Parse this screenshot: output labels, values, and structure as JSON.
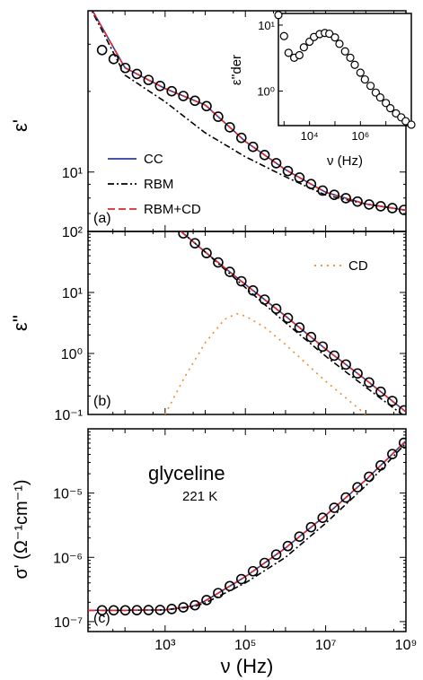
{
  "x_axis": {
    "label": "ν (Hz)",
    "ticks": [
      "10³",
      "10⁵",
      "10⁷",
      "10⁹"
    ]
  },
  "chart_data": [
    {
      "type": "line",
      "panel": "(a)",
      "ylabel": "ε'",
      "xscale": "log",
      "yscale": "log",
      "xlim": [
        12.0,
        1000000000.0
      ],
      "ylim": [
        6,
        40
      ],
      "y_ticks": [
        "10¹"
      ],
      "legend_position": "lower-left",
      "x": [
        10,
        100,
        1000,
        10000,
        100000,
        1000000,
        10000000,
        100000000,
        1000000000
      ],
      "series": [
        {
          "name": "CC",
          "color": "#2b3f9e",
          "style": "solid",
          "values": [
            45,
            24.5,
            20.5,
            17.8,
            13.0,
            10.2,
            8.4,
            7.6,
            7.2
          ]
        },
        {
          "name": "RBM",
          "color": "#000000",
          "style": "dashdot",
          "values": [
            45,
            23,
            18.3,
            14.0,
            11.4,
            9.6,
            8.2,
            7.6,
            7.2
          ]
        },
        {
          "name": "RBM+CD",
          "color": "#e3262b",
          "style": "dashed",
          "values": [
            45,
            24.5,
            20.5,
            17.8,
            13.0,
            10.2,
            8.4,
            7.6,
            7.2
          ]
        },
        {
          "name": "data",
          "color": "#000000",
          "style": "marker",
          "values": [
            32,
            24.5,
            20.5,
            17.8,
            13.0,
            10.2,
            8.4,
            7.6,
            7.2
          ]
        }
      ],
      "inset": {
        "type": "scatter",
        "ylabel": "ε''der",
        "xlabel": "ν (Hz)",
        "xscale": "log",
        "yscale": "log",
        "xlim": [
          600,
          100000000.0
        ],
        "ylim": [
          0.3,
          15
        ],
        "x_ticks": [
          "10⁴",
          "10⁶"
        ],
        "y_ticks": [
          "10¹",
          "10⁰"
        ],
        "x": [
          600,
          1000,
          1500,
          2500,
          4000,
          6000,
          10000,
          15000,
          25000,
          40000,
          60000,
          100000,
          150000,
          250000,
          400000,
          600000,
          1000000,
          1500000,
          2500000,
          4000000,
          6000000,
          10000000,
          15000000,
          25000000,
          40000000,
          60000000,
          100000000
        ],
        "values": [
          14.2,
          6.8,
          3.8,
          3.2,
          3.5,
          4.6,
          5.6,
          6.6,
          7.3,
          7.6,
          7.4,
          6.5,
          5.2,
          4.0,
          3.2,
          2.5,
          1.9,
          1.5,
          1.2,
          0.95,
          0.8,
          0.66,
          0.55,
          0.46,
          0.4,
          0.35,
          0.31
        ]
      }
    },
    {
      "type": "line",
      "panel": "(b)",
      "ylabel": "ε''",
      "xscale": "log",
      "yscale": "log",
      "xlim": [
        12.0,
        1000000000.0
      ],
      "ylim": [
        0.1,
        100
      ],
      "y_ticks": [
        "10²",
        "10¹",
        "10⁰",
        "10⁻¹"
      ],
      "legend_position": "top-right",
      "x": [
        2500,
        10000,
        100000,
        1000000,
        10000000,
        100000000,
        1000000000
      ],
      "series": [
        {
          "name": "CC",
          "color": "#2b3f9e",
          "style": "solid",
          "values": [
            100,
            46,
            13.5,
            4.1,
            1.18,
            0.37,
            0.11
          ]
        },
        {
          "name": "RBM",
          "color": "#000000",
          "style": "dashdot",
          "values": [
            100,
            46,
            12.0,
            3.2,
            0.9,
            0.28,
            0.09
          ]
        },
        {
          "name": "RBM+CD",
          "color": "#e3262b",
          "style": "dashed",
          "values": [
            100,
            46,
            13.5,
            4.1,
            1.18,
            0.37,
            0.11
          ]
        },
        {
          "name": "data",
          "color": "#000000",
          "style": "marker",
          "values": [
            100,
            46,
            13.5,
            4.1,
            1.18,
            0.37,
            0.11
          ]
        },
        {
          "name": "CD",
          "color": "#f08a2a",
          "style": "dotted",
          "x": [
            1000,
            3000,
            10000,
            30000,
            60000,
            100000,
            300000,
            1000000,
            10000000,
            100000000
          ],
          "values": [
            0.1,
            0.4,
            1.5,
            3.6,
            4.5,
            4.1,
            2.7,
            1.4,
            0.35,
            0.1
          ]
        }
      ]
    },
    {
      "type": "line",
      "panel": "(c)",
      "ylabel": "σ' (Ω⁻¹cm⁻¹)",
      "annotation": "glyceline",
      "annotation2": "221 K",
      "xscale": "log",
      "yscale": "log",
      "xlim": [
        12.0,
        1000000000.0
      ],
      "ylim": [
        7e-08,
        0.0001
      ],
      "y_ticks": [
        "10⁻⁵",
        "10⁻⁶",
        "10⁻⁷"
      ],
      "x": [
        12,
        100,
        1000,
        5000,
        10000,
        100000,
        1000000,
        10000000,
        100000000,
        1000000000
      ],
      "series": [
        {
          "name": "CC",
          "color": "#2b3f9e",
          "style": "solid",
          "values": [
            1.5e-07,
            1.5e-07,
            1.52e-07,
            1.75e-07,
            2.1e-07,
            5e-07,
            1.4e-06,
            4.5e-06,
            1.6e-05,
            6.5e-05
          ]
        },
        {
          "name": "RBM",
          "color": "#000000",
          "style": "dashdot",
          "values": [
            1.5e-07,
            1.5e-07,
            1.52e-07,
            1.7e-07,
            1.95e-07,
            4e-07,
            1e-06,
            3.4e-06,
            1.3e-05,
            6e-05
          ]
        },
        {
          "name": "RBM+CD",
          "color": "#e3262b",
          "style": "dashed",
          "values": [
            1.5e-07,
            1.5e-07,
            1.52e-07,
            1.75e-07,
            2.1e-07,
            5e-07,
            1.4e-06,
            4.5e-06,
            1.6e-05,
            6.5e-05
          ]
        },
        {
          "name": "data",
          "color": "#000000",
          "style": "marker",
          "values": [
            1.5e-07,
            1.5e-07,
            1.52e-07,
            1.75e-07,
            2.1e-07,
            5e-07,
            1.4e-06,
            4.5e-06,
            1.6e-05,
            6.5e-05
          ]
        }
      ]
    }
  ]
}
